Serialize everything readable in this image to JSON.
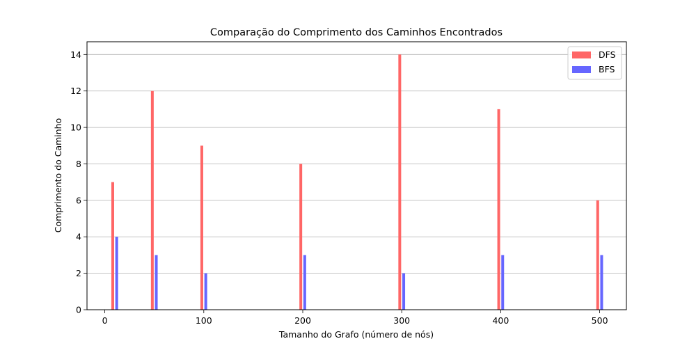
{
  "chart_data": {
    "type": "bar",
    "title": "Comparação do Comprimento dos Caminhos Encontrados",
    "xlabel": "Tamanho do Grafo (número de nós)",
    "ylabel": "Comprimento do Caminho",
    "x": [
      10,
      50,
      100,
      200,
      300,
      400,
      500
    ],
    "xlim": [
      -18,
      527
    ],
    "ylim": [
      0,
      14.7
    ],
    "xticks": [
      0,
      100,
      200,
      300,
      400,
      500
    ],
    "yticks": [
      0,
      2,
      4,
      6,
      8,
      10,
      12,
      14
    ],
    "grid": "y",
    "legend": "top-right",
    "series": [
      {
        "name": "DFS",
        "values": [
          7,
          12,
          9,
          8,
          14,
          11,
          6
        ],
        "color": "#ff6666",
        "offset": -2
      },
      {
        "name": "BFS",
        "values": [
          4,
          3,
          2,
          3,
          2,
          3,
          3
        ],
        "color": "#6666ff",
        "offset": 2
      }
    ]
  }
}
